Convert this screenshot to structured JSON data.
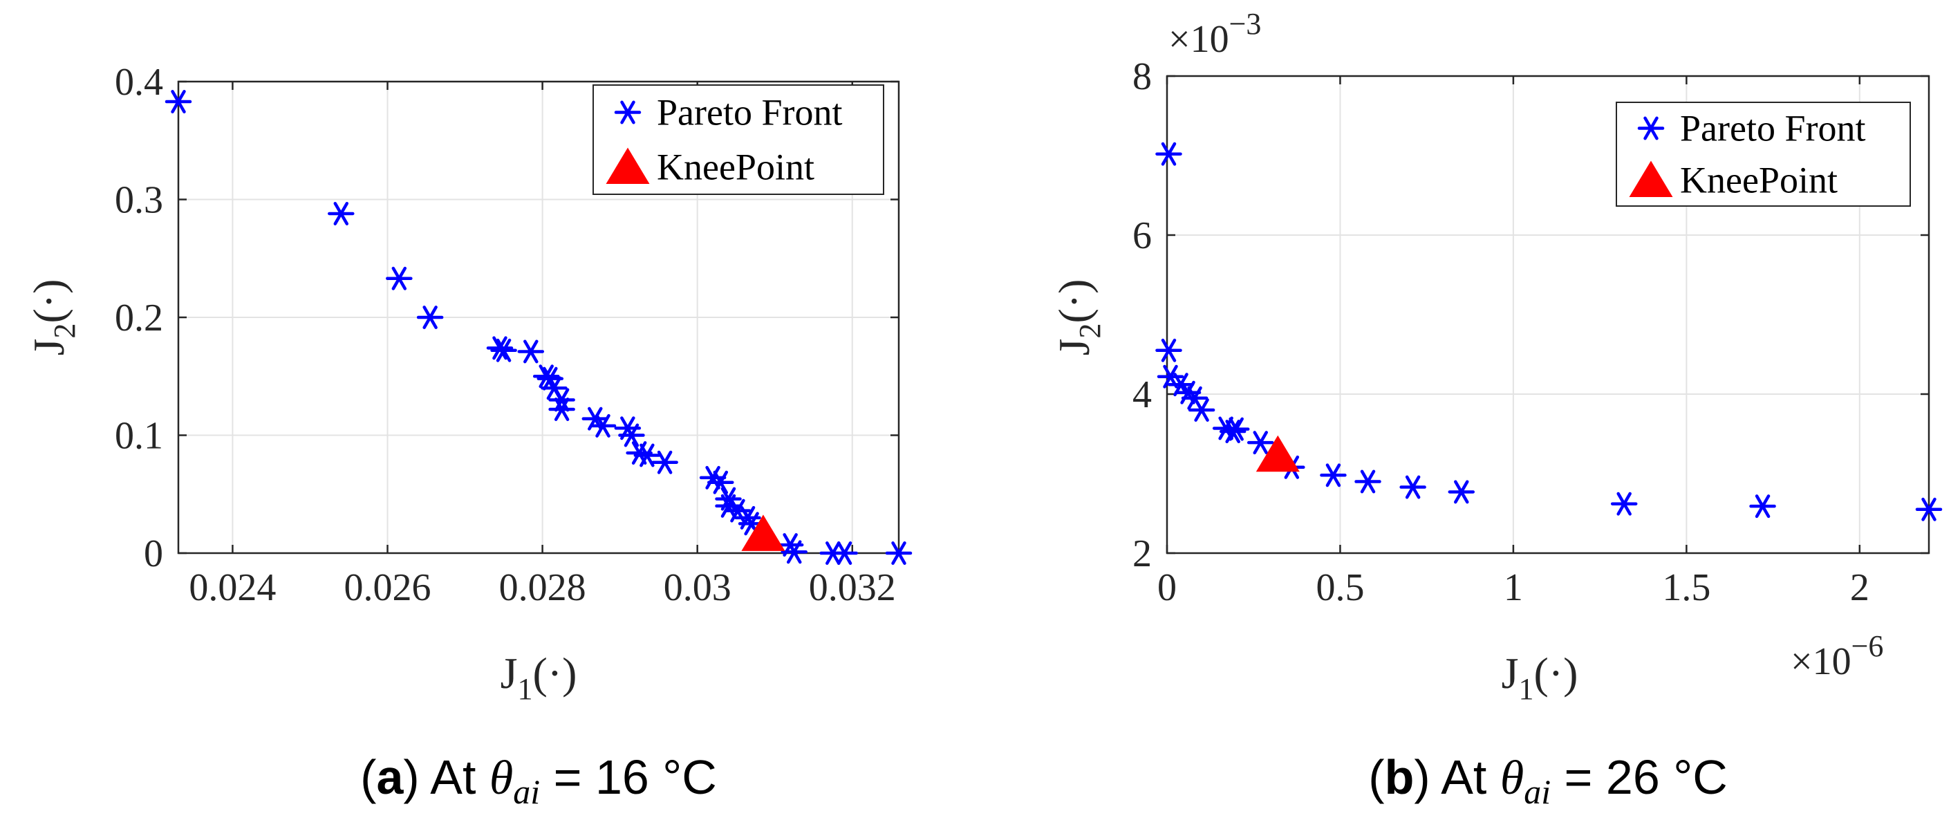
{
  "chart_data": [
    {
      "type": "scatter",
      "id": "a",
      "caption": {
        "label": "a",
        "prefix": "At",
        "var": "θ",
        "sub": "ai",
        "eq": "=",
        "value": "16 °C"
      },
      "xlabel": {
        "main": "J",
        "sub": "1",
        "tail": "(·)"
      },
      "ylabel": {
        "main": "J",
        "sub": "2",
        "tail": "(·)"
      },
      "xlim": [
        0.0233,
        0.0326
      ],
      "ylim": [
        0,
        0.4
      ],
      "xticks": [
        0.024,
        0.026,
        0.028,
        0.03,
        0.032
      ],
      "xtick_labels": [
        "0.024",
        "0.026",
        "0.028",
        "0.03",
        "0.032"
      ],
      "yticks": [
        0,
        0.1,
        0.2,
        0.3,
        0.4
      ],
      "ytick_labels": [
        "0",
        "0.1",
        "0.2",
        "0.3",
        "0.4"
      ],
      "x_exponent": "",
      "y_exponent": "",
      "grid": true,
      "legend": {
        "position": "top-right",
        "entries": [
          "Pareto Front",
          "KneePoint"
        ]
      },
      "series": [
        {
          "name": "Pareto Front",
          "marker": "asterisk",
          "color": "#0000ff",
          "points": [
            [
              0.0233,
              0.383
            ],
            [
              0.0254,
              0.288
            ],
            [
              0.02615,
              0.233
            ],
            [
              0.02655,
              0.2
            ],
            [
              0.02745,
              0.174
            ],
            [
              0.0275,
              0.172
            ],
            [
              0.02785,
              0.171
            ],
            [
              0.02805,
              0.15
            ],
            [
              0.0281,
              0.148
            ],
            [
              0.02815,
              0.14
            ],
            [
              0.02825,
              0.13
            ],
            [
              0.02825,
              0.122
            ],
            [
              0.02868,
              0.114
            ],
            [
              0.02878,
              0.108
            ],
            [
              0.0291,
              0.106
            ],
            [
              0.02915,
              0.1
            ],
            [
              0.02925,
              0.085
            ],
            [
              0.02935,
              0.083
            ],
            [
              0.02958,
              0.077
            ],
            [
              0.0302,
              0.064
            ],
            [
              0.0303,
              0.06
            ],
            [
              0.0304,
              0.046
            ],
            [
              0.0304,
              0.04
            ],
            [
              0.03052,
              0.036
            ],
            [
              0.03065,
              0.03
            ],
            [
              0.0307,
              0.025
            ],
            [
              0.0312,
              0.007
            ],
            [
              0.03125,
              0.001
            ],
            [
              0.03175,
              0.0
            ],
            [
              0.0319,
              0.0
            ],
            [
              0.0326,
              0.0
            ]
          ]
        },
        {
          "name": "KneePoint",
          "marker": "triangle",
          "color": "#ff0000",
          "points": [
            [
              0.03085,
              0.015
            ]
          ]
        }
      ]
    },
    {
      "type": "scatter",
      "id": "b",
      "caption": {
        "label": "b",
        "prefix": "At",
        "var": "θ",
        "sub": "ai",
        "eq": "=",
        "value": "26 °C"
      },
      "xlabel": {
        "main": "J",
        "sub": "1",
        "tail": "(·)"
      },
      "ylabel": {
        "main": "J",
        "sub": "2",
        "tail": "(·)"
      },
      "xlim": [
        0,
        2.2
      ],
      "ylim": [
        2,
        8
      ],
      "xticks": [
        0,
        0.5,
        1,
        1.5,
        2
      ],
      "xtick_labels": [
        "0",
        "0.5",
        "1",
        "1.5",
        "2"
      ],
      "yticks": [
        2,
        4,
        6,
        8
      ],
      "ytick_labels": [
        "2",
        "4",
        "6",
        "8"
      ],
      "x_exponent": {
        "base": "×10",
        "exp": "−6"
      },
      "y_exponent": {
        "base": "×10",
        "exp": "−3"
      },
      "grid": true,
      "legend": {
        "position": "top-right",
        "entries": [
          "Pareto Front",
          "KneePoint"
        ]
      },
      "series": [
        {
          "name": "Pareto Front",
          "marker": "asterisk",
          "color": "#0000ff",
          "points": [
            [
              0.005,
              7.02
            ],
            [
              0.005,
              4.55
            ],
            [
              0.01,
              4.22
            ],
            [
              0.04,
              4.12
            ],
            [
              0.06,
              4.02
            ],
            [
              0.08,
              3.95
            ],
            [
              0.1,
              3.8
            ],
            [
              0.17,
              3.57
            ],
            [
              0.19,
              3.53
            ],
            [
              0.2,
              3.56
            ],
            [
              0.27,
              3.39
            ],
            [
              0.36,
              3.08
            ],
            [
              0.48,
              2.98
            ],
            [
              0.58,
              2.9
            ],
            [
              0.71,
              2.83
            ],
            [
              0.85,
              2.77
            ],
            [
              1.32,
              2.62
            ],
            [
              1.72,
              2.59
            ],
            [
              2.2,
              2.55
            ]
          ]
        },
        {
          "name": "KneePoint",
          "marker": "triangle",
          "color": "#ff0000",
          "points": [
            [
              0.32,
              3.22
            ]
          ]
        }
      ]
    }
  ]
}
